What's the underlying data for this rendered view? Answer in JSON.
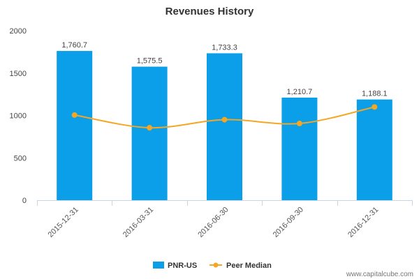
{
  "chart_data": {
    "type": "bar",
    "title": "Revenues History",
    "categories": [
      "2015-12-31",
      "2016-03-31",
      "2016-06-30",
      "2016-09-30",
      "2016-12-31"
    ],
    "series": [
      {
        "name": "PNR-US",
        "kind": "bar",
        "color": "#0a9fe8",
        "values": [
          1760.7,
          1575.5,
          1733.3,
          1210.7,
          1188.1
        ],
        "labels": [
          "1,760.7",
          "1,575.5",
          "1,733.3",
          "1,210.7",
          "1,188.1"
        ]
      },
      {
        "name": "Peer Median",
        "kind": "line",
        "color": "#f5a623",
        "values": [
          1005,
          855,
          950,
          905,
          1100
        ]
      }
    ],
    "yticks": [
      0,
      500,
      1000,
      1500,
      2000
    ],
    "ylim": [
      0,
      2000
    ],
    "xlabel": "",
    "ylabel": "",
    "grid": false,
    "legend_position": "bottom-center"
  },
  "watermark": "www.capitalcube.com"
}
